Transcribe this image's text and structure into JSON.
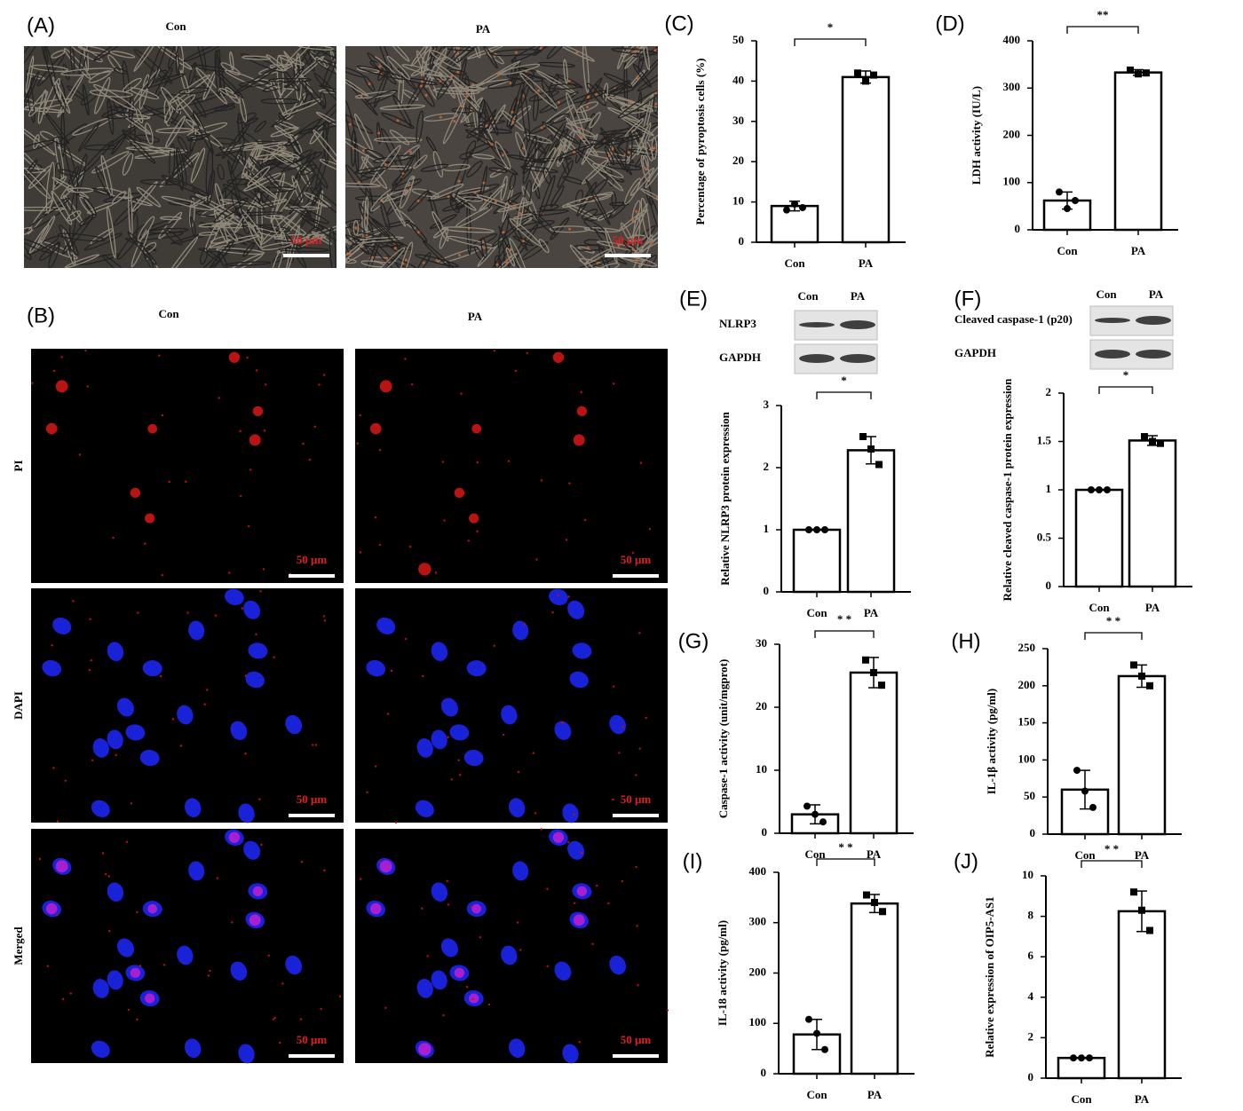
{
  "panel_a": {
    "label": "(A)",
    "columns": [
      "Con",
      "PA"
    ],
    "scale_labels": [
      "50 μm",
      "50 μm"
    ]
  },
  "panel_b": {
    "label": "(B)",
    "columns": [
      "Con",
      "PA"
    ],
    "rows": [
      "PI",
      "DAPI",
      "Merged"
    ],
    "scale_labels": [
      [
        "50 μm",
        "50 μm"
      ],
      [
        "50 μm",
        "50 μm"
      ],
      [
        "50 μm",
        "50 μm"
      ]
    ]
  },
  "chart_data": [
    {
      "type": "bar",
      "panel_label": "(C)",
      "ylabel": "Percentage of pyroptosis cells (%)",
      "categories": [
        "Con",
        "PA"
      ],
      "values": [
        9,
        41
      ],
      "errors": [
        1.2,
        1.5
      ],
      "points": [
        [
          8,
          9.5,
          8.6
        ],
        [
          42,
          40,
          41.5
        ]
      ],
      "significance": "*",
      "ylim": [
        0,
        50
      ],
      "yticks": [
        0,
        10,
        20,
        30,
        40,
        50
      ]
    },
    {
      "type": "bar",
      "panel_label": "(D)",
      "ylabel": "LDH activity (IU/L)",
      "categories": [
        "Con",
        "PA"
      ],
      "values": [
        62,
        333
      ],
      "errors": [
        18,
        6
      ],
      "points": [
        [
          80,
          45,
          62
        ],
        [
          338,
          330,
          332
        ]
      ],
      "significance": "**",
      "ylim": [
        0,
        400
      ],
      "yticks": [
        0,
        100,
        200,
        300,
        400
      ]
    },
    {
      "type": "bar",
      "panel_label": "(E)",
      "ylabel": "Relative NLRP3 protein expression",
      "categories": [
        "Con",
        "PA"
      ],
      "values": [
        1,
        2.28
      ],
      "errors": [
        0,
        0.22
      ],
      "points": [
        [
          1,
          1,
          1
        ],
        [
          2.5,
          2.3,
          2.05
        ]
      ],
      "significance": "*",
      "ylim": [
        0,
        3
      ],
      "yticks": [
        0,
        1,
        2,
        3
      ],
      "blot": {
        "columns": [
          "Con",
          "PA"
        ],
        "rows": [
          "NLRP3",
          "GAPDH"
        ]
      }
    },
    {
      "type": "bar",
      "panel_label": "(F)",
      "ylabel": "Relative cleaved caspase-1 protein expression",
      "categories": [
        "Con",
        "PA"
      ],
      "values": [
        1,
        1.51
      ],
      "errors": [
        0,
        0.05
      ],
      "points": [
        [
          1,
          1,
          1
        ],
        [
          1.55,
          1.5,
          1.48
        ]
      ],
      "significance": "*",
      "ylim": [
        0,
        2
      ],
      "yticks": [
        0,
        0.5,
        1,
        1.5,
        2
      ],
      "blot": {
        "columns": [
          "Con",
          "PA"
        ],
        "rows": [
          "Cleaved caspase-1 (p20)",
          "GAPDH"
        ]
      }
    },
    {
      "type": "bar",
      "panel_label": "(G)",
      "ylabel": "Caspase-1 activity  (unit/mgprot)",
      "categories": [
        "Con",
        "PA"
      ],
      "values": [
        3,
        25.5
      ],
      "errors": [
        1.5,
        2.4
      ],
      "points": [
        [
          4.3,
          3,
          1.8
        ],
        [
          27.5,
          25.5,
          23.5
        ]
      ],
      "significance": "* *",
      "ylim": [
        0,
        30
      ],
      "yticks": [
        0,
        10,
        20,
        30
      ]
    },
    {
      "type": "bar",
      "panel_label": "(H)",
      "ylabel": "IL-1β activity (pg/ml)",
      "categories": [
        "Con",
        "PA"
      ],
      "values": [
        60,
        213
      ],
      "errors": [
        26,
        15
      ],
      "points": [
        [
          86,
          58,
          36
        ],
        [
          228,
          213,
          200
        ]
      ],
      "significance": "* *",
      "ylim": [
        0,
        250
      ],
      "yticks": [
        0,
        50,
        100,
        150,
        200,
        250
      ]
    },
    {
      "type": "bar",
      "panel_label": "(I)",
      "ylabel": "IL-18 activity (pg/ml)",
      "categories": [
        "Con",
        "PA"
      ],
      "values": [
        78,
        338
      ],
      "errors": [
        30,
        18
      ],
      "points": [
        [
          108,
          80,
          48
        ],
        [
          355,
          340,
          322
        ]
      ],
      "significance": "* *",
      "ylim": [
        0,
        400
      ],
      "yticks": [
        0,
        100,
        200,
        300,
        400
      ]
    },
    {
      "type": "bar",
      "panel_label": "(J)",
      "ylabel": "Relative expression of OIP5-AS1",
      "categories": [
        "Con",
        "PA"
      ],
      "values": [
        1,
        8.25
      ],
      "errors": [
        0,
        1
      ],
      "points": [
        [
          1,
          1,
          1
        ],
        [
          9.2,
          8.3,
          7.3
        ]
      ],
      "significance": "* *",
      "ylim": [
        0,
        10
      ],
      "yticks": [
        0,
        2,
        4,
        6,
        8,
        10
      ]
    }
  ]
}
